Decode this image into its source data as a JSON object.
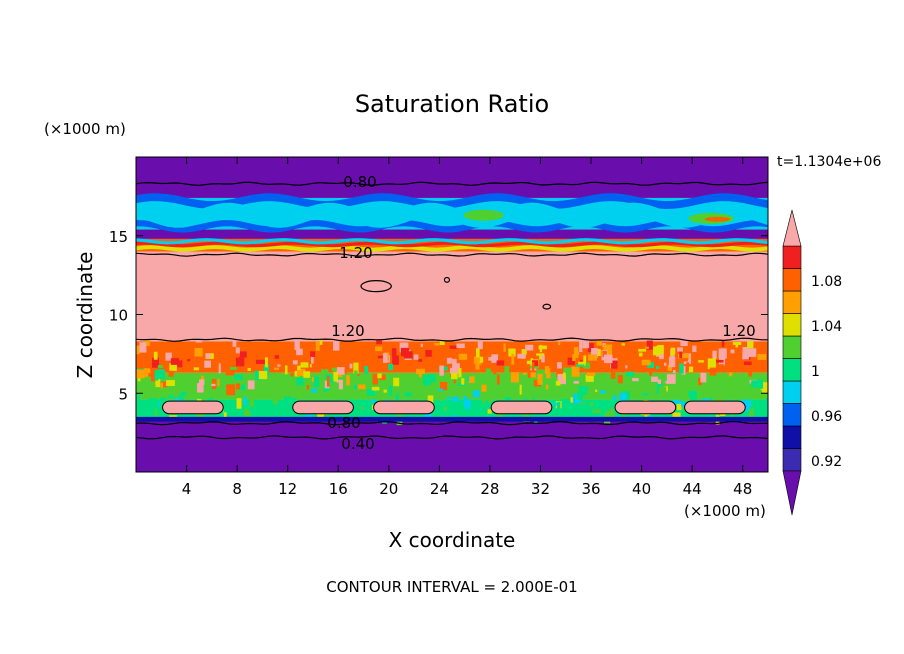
{
  "chart_data": {
    "type": "heatmap",
    "title": "Saturation Ratio",
    "xlabel": "X coordinate",
    "ylabel": "Z coordinate",
    "x_unit": "(×1000 m)",
    "y_unit": "(×1000 m)",
    "xlim": [
      0,
      50
    ],
    "ylim": [
      0,
      20
    ],
    "x_ticks": [
      "4",
      "8",
      "12",
      "16",
      "20",
      "24",
      "28",
      "32",
      "36",
      "40",
      "44",
      "48"
    ],
    "y_ticks": [
      "5",
      "10",
      "15"
    ],
    "time_label": "t=1.1304e+06",
    "footer": "CONTOUR INTERVAL = 2.000E-01",
    "contour_labels": [
      "0.80",
      "1.20",
      "1.20",
      "1.20",
      "0.80",
      "0.40"
    ],
    "colorbar": {
      "tick_labels": [
        "0.92",
        "0.96",
        "1",
        "1.04",
        "1.08"
      ],
      "levels": [
        0.92,
        0.94,
        0.96,
        0.98,
        1.0,
        1.02,
        1.04,
        1.06,
        1.08,
        1.1
      ],
      "colors": [
        "#6a0dad",
        "#3a2bb0",
        "#1010a8",
        "#0060f0",
        "#00d0f0",
        "#00e080",
        "#50d030",
        "#e0e000",
        "#ffa000",
        "#ff6000",
        "#f02020",
        "#f8a8a8"
      ]
    },
    "bands": [
      {
        "z_bottom": 0,
        "z_top": 3.4,
        "level": "<0.92",
        "color": "#6a0dad"
      },
      {
        "z_bottom": 3.4,
        "z_top": 4.6,
        "level": "0.98-1.02",
        "color": "#00e080"
      },
      {
        "z_bottom": 4.6,
        "z_top": 6.3,
        "level": "1.00-1.04",
        "color": "#50d030"
      },
      {
        "z_bottom": 6.3,
        "z_top": 8.3,
        "level": "1.04-1.10",
        "color": "#ff6000"
      },
      {
        "z_bottom": 8.3,
        "z_top": 14.0,
        "level": ">1.10",
        "color": "#f8a8a8"
      },
      {
        "z_bottom": 14.0,
        "z_top": 14.8,
        "level": "1.02-1.10",
        "color": "#ff6000"
      },
      {
        "z_bottom": 14.8,
        "z_top": 15.4,
        "level": "<0.92",
        "color": "#6a0dad"
      },
      {
        "z_bottom": 15.4,
        "z_top": 17.4,
        "level": "0.94-0.98",
        "color": "#00d0f0"
      },
      {
        "z_bottom": 17.4,
        "z_top": 20,
        "level": "<0.92",
        "color": "#6a0dad"
      }
    ],
    "contours": [
      {
        "value": 0.8,
        "z": 18.3
      },
      {
        "value": 1.2,
        "z": 13.8
      },
      {
        "value": 1.2,
        "z": 8.4
      },
      {
        "value": 0.8,
        "z": 3.1
      },
      {
        "value": 0.4,
        "z": 2.2
      }
    ]
  }
}
